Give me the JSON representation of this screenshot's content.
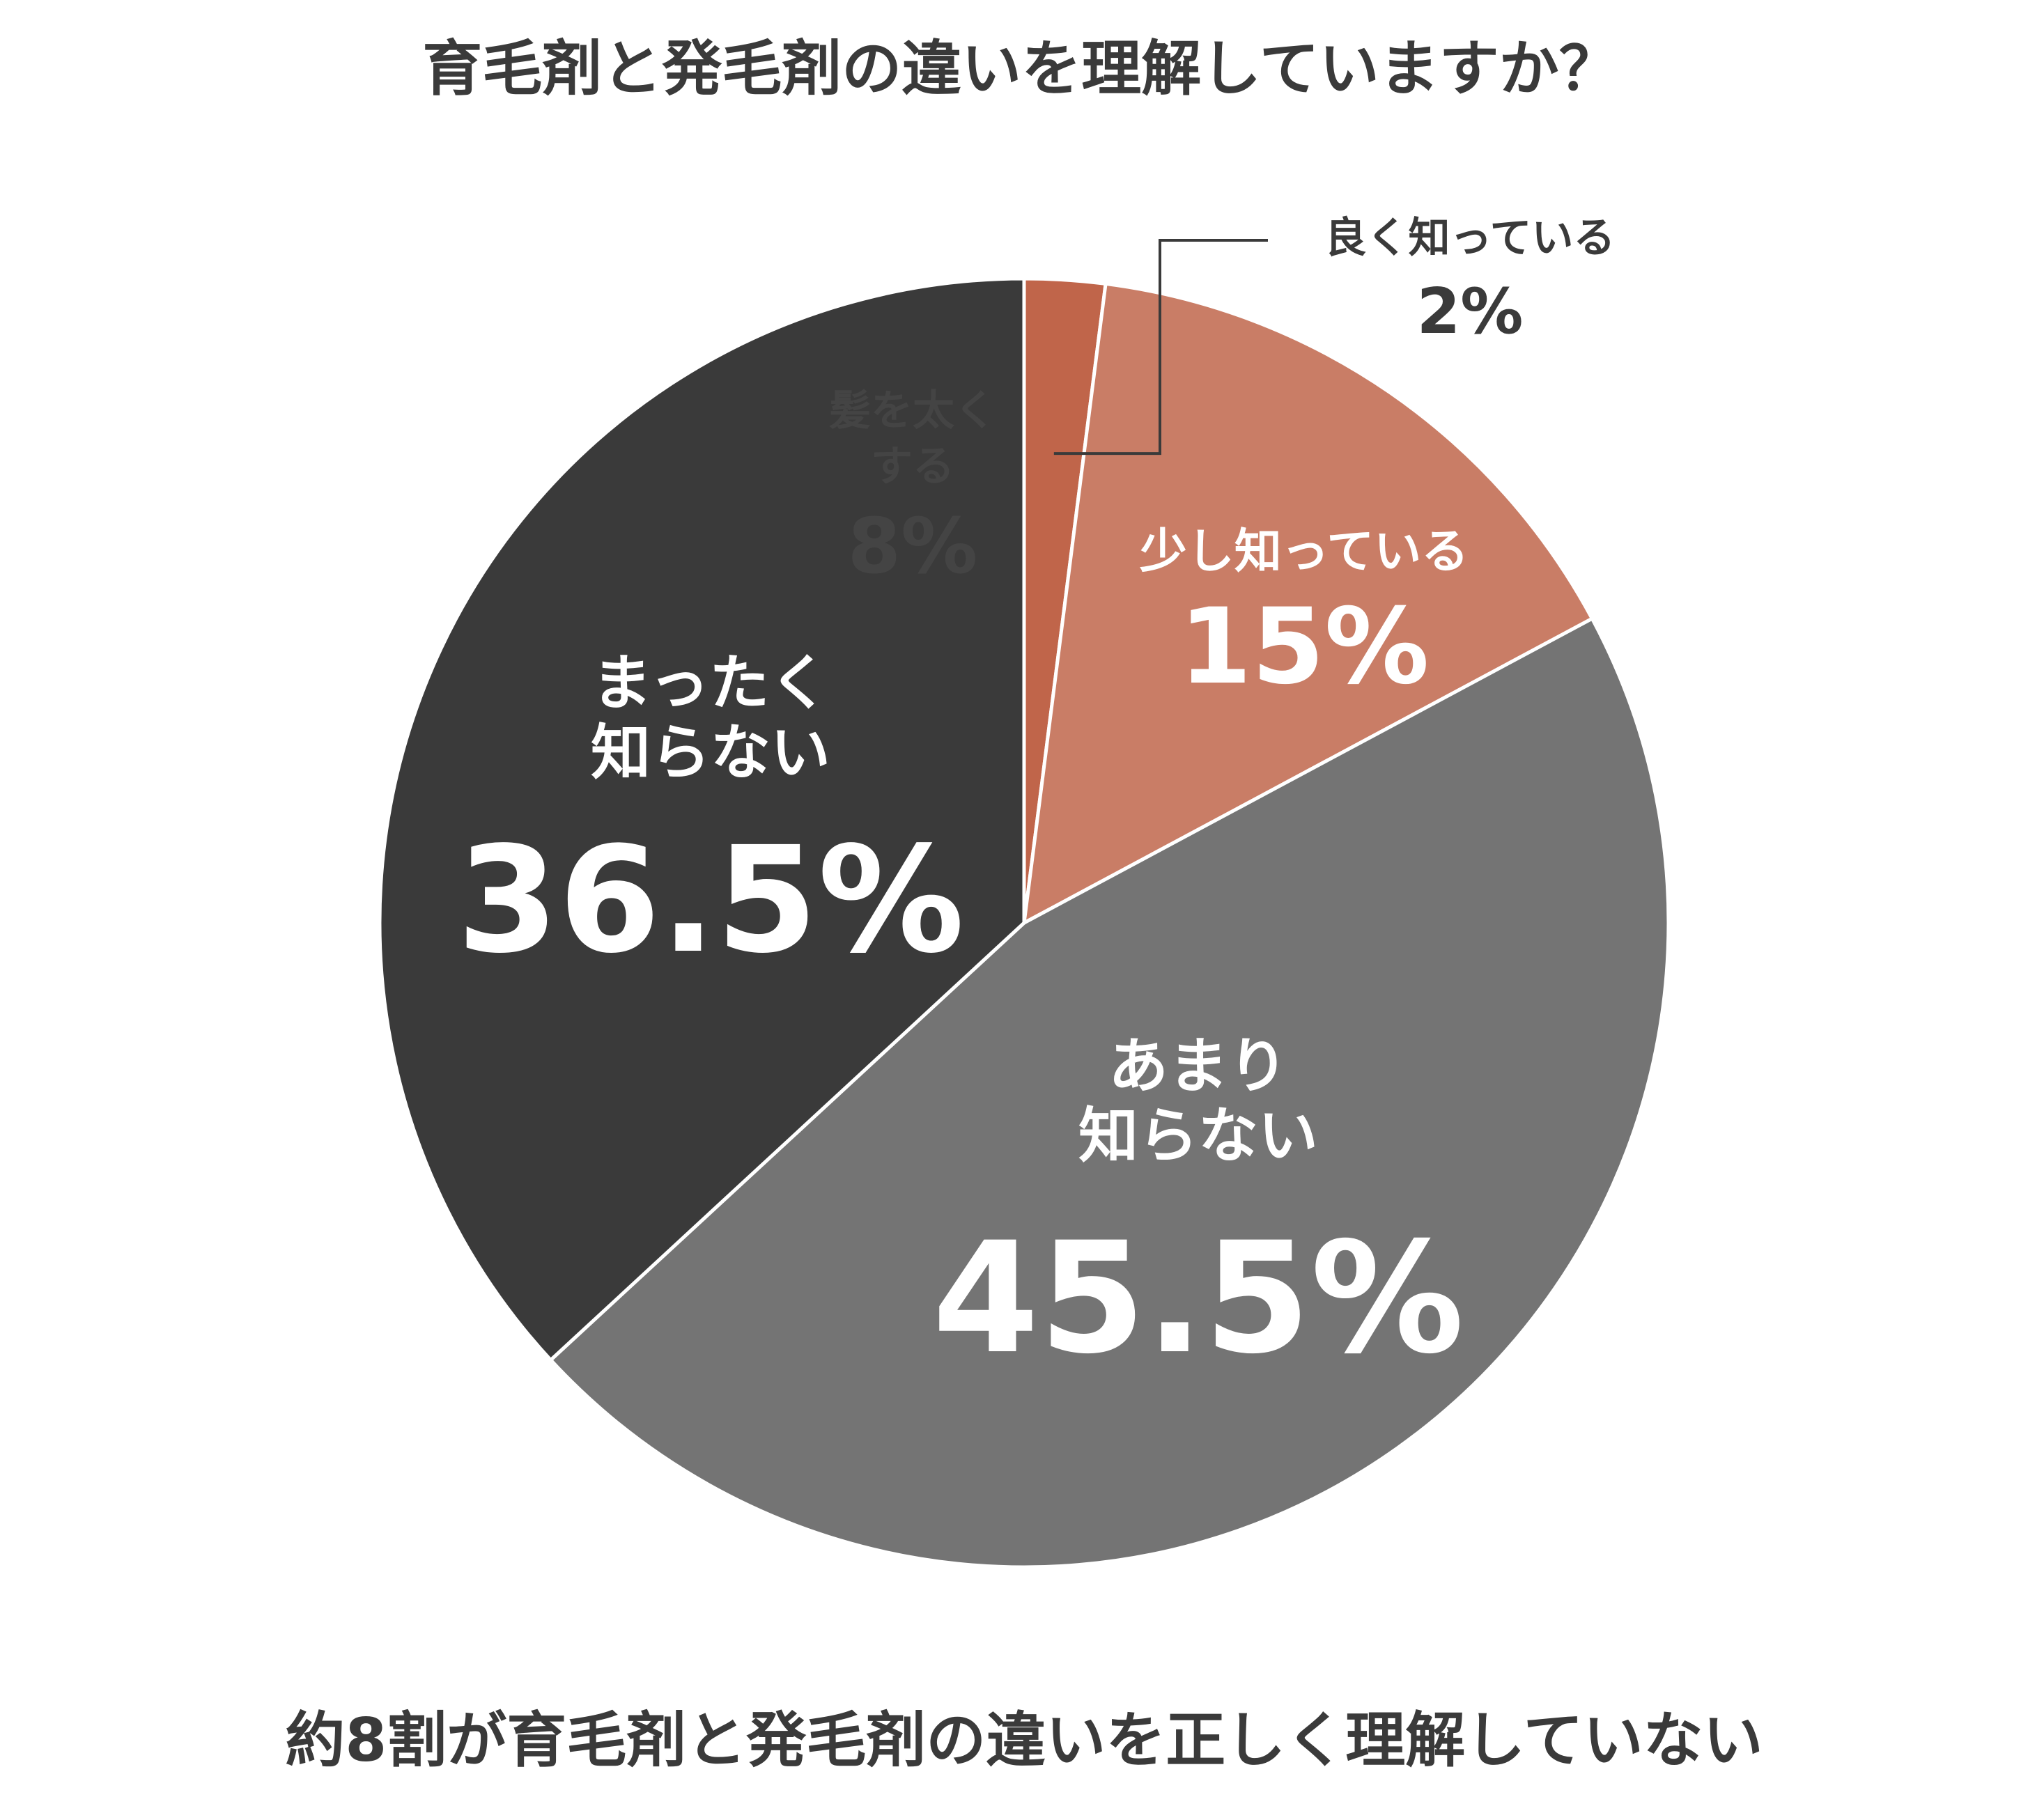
{
  "chart_data": {
    "type": "pie",
    "title": "育毛剤と発毛剤の違いを理解していますか？",
    "footer": "約8割が育毛剤と発毛剤の違いを正しく理解していない",
    "slices": [
      {
        "label_lines": [
          "良く知っている"
        ],
        "value": 2,
        "value_label": "2%",
        "color": "#c0654a"
      },
      {
        "label_lines": [
          "少し知っている"
        ],
        "value": 15,
        "value_label": "15%",
        "color": "#c97d66"
      },
      {
        "label_lines": [
          "あまり",
          "知らない"
        ],
        "value": 45.5,
        "value_label": "45.5%",
        "color": "#747474"
      },
      {
        "label_lines": [
          "まったく",
          "知らない"
        ],
        "value": 36.5,
        "value_label": "36.5%",
        "color": "#3a3a3a"
      }
    ],
    "ghost_label": {
      "lines": [
        "髪を太く",
        "する"
      ],
      "value_label": "8%",
      "color": "#444444"
    },
    "colors": {
      "text_dark": "#3a3a3a",
      "text_light": "#ffffff",
      "separator": "#ffffff",
      "leader_line": "#3a3a3a"
    }
  }
}
